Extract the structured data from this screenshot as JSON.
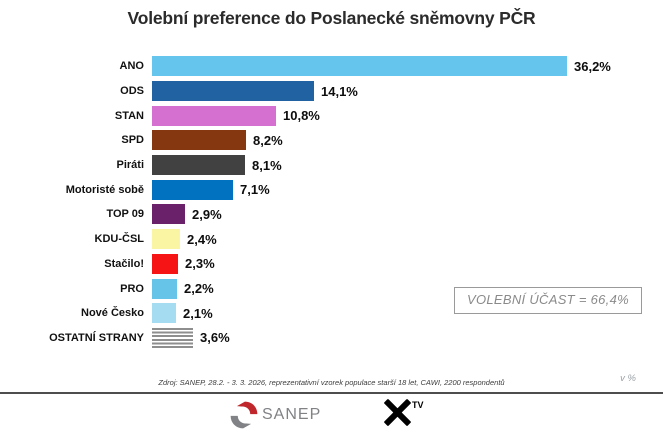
{
  "title": "Volební preference do Poslanecké sněmovny PČR",
  "turnout_box": {
    "text": "VOLEBNÍ ÚČAST = 66,4%"
  },
  "unit_note": "v %",
  "source": "Zdroj: SANEP, 28.2. - 3. 3. 2026, reprezentativní vzorek populace starší 18 let, CAWI, 2200 respondentů",
  "logos": {
    "sanep": "SANEP",
    "xtv_label": "TV"
  },
  "chart_data": {
    "type": "bar",
    "orientation": "horizontal",
    "title": "Volební preference do Poslanecké sněmovny PČR",
    "xlabel": "v %",
    "xlim": [
      0,
      40
    ],
    "grid": false,
    "value_labels_visible": true,
    "decimal_separator": ",",
    "categories": [
      "ANO",
      "ODS",
      "STAN",
      "SPD",
      "Piráti",
      "Motoristé sobě",
      "TOP 09",
      "KDU-ČSL",
      "Stačilo!",
      "PRO",
      "Nové Česko",
      "OSTATNÍ STRANY"
    ],
    "values": [
      36.2,
      14.1,
      10.8,
      8.2,
      8.1,
      7.1,
      2.9,
      2.4,
      2.3,
      2.2,
      2.1,
      3.6
    ],
    "value_labels": [
      "36,2%",
      "14,1%",
      "10,8%",
      "8,2%",
      "8,1%",
      "7,1%",
      "2,9%",
      "2,4%",
      "2,3%",
      "2,2%",
      "2,1%",
      "3,6%"
    ],
    "bar_colors": [
      "#66C5EC",
      "#2162A2",
      "#D56FD0",
      "#85370F",
      "#414141",
      "#0072C0",
      "#6B2169",
      "#FAF5A3",
      "#F61414",
      "#66C4E9",
      "#A5DCF1",
      "striped-gray"
    ],
    "annotations": [
      "VOLEBNÍ ÚČAST = 66,4%"
    ]
  }
}
